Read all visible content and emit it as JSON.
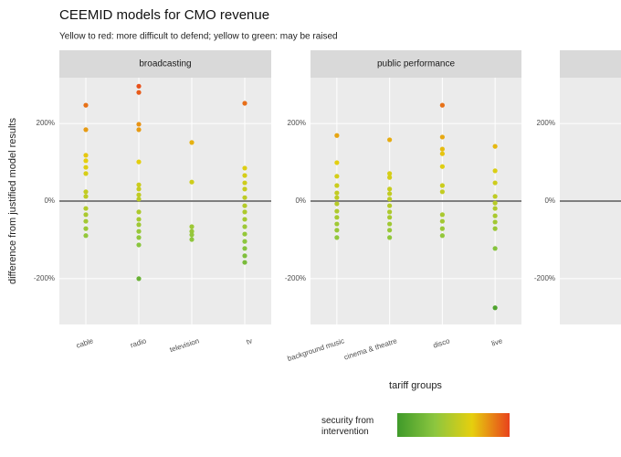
{
  "chart_data": {
    "type": "strip",
    "title": "CEEMID models for CMO revenue",
    "subtitle": "Yellow to red: more difficult to defend; yellow to green: may be raised",
    "y_label": "difference from justified model results",
    "x_label": "tariff groups",
    "legend_title": "security from intervention",
    "colorscale": [
      "#3f9a2a",
      "#8cc63f",
      "#e6cf0e",
      "#e8421c"
    ],
    "ylim": [
      -318,
      318
    ],
    "yticks": [
      {
        "value": -200,
        "label": "-200%"
      },
      {
        "value": 0,
        "label": "0%"
      },
      {
        "value": 200,
        "label": "200%"
      }
    ],
    "hline": 0,
    "grid": true,
    "facets": [
      {
        "name": "broadcasting",
        "categories": [
          "cable",
          "radio",
          "television",
          "tv"
        ],
        "values": [
          [
            247,
            184,
            118,
            104,
            87,
            71,
            24,
            12,
            -19,
            -35,
            -52,
            -71,
            -89
          ],
          [
            296,
            280,
            198,
            184,
            101,
            42,
            31,
            16,
            5,
            -28,
            -47,
            -61,
            -78,
            -94,
            -113,
            -200
          ],
          [
            151,
            49,
            -66,
            -78,
            -87,
            -99
          ],
          [
            252,
            85,
            66,
            47,
            31,
            9,
            -12,
            -28,
            -47,
            -66,
            -85,
            -104,
            -122,
            -141,
            -158
          ]
        ]
      },
      {
        "name": "public performance",
        "categories": [
          "background music",
          "cinema & theatre",
          "disco",
          "live"
        ],
        "values": [
          [
            169,
            99,
            64,
            40,
            21,
            9,
            -7,
            -26,
            -42,
            -59,
            -75,
            -94
          ],
          [
            158,
            71,
            61,
            31,
            19,
            5,
            -12,
            -28,
            -42,
            -59,
            -75,
            -94
          ],
          [
            247,
            165,
            134,
            122,
            89,
            40,
            24,
            -35,
            -52,
            -71,
            -89
          ],
          [
            141,
            78,
            47,
            12,
            -5,
            -19,
            -38,
            -54,
            -71,
            -122,
            -275
          ]
        ]
      },
      {
        "name": null,
        "categories": [],
        "values": []
      }
    ]
  }
}
